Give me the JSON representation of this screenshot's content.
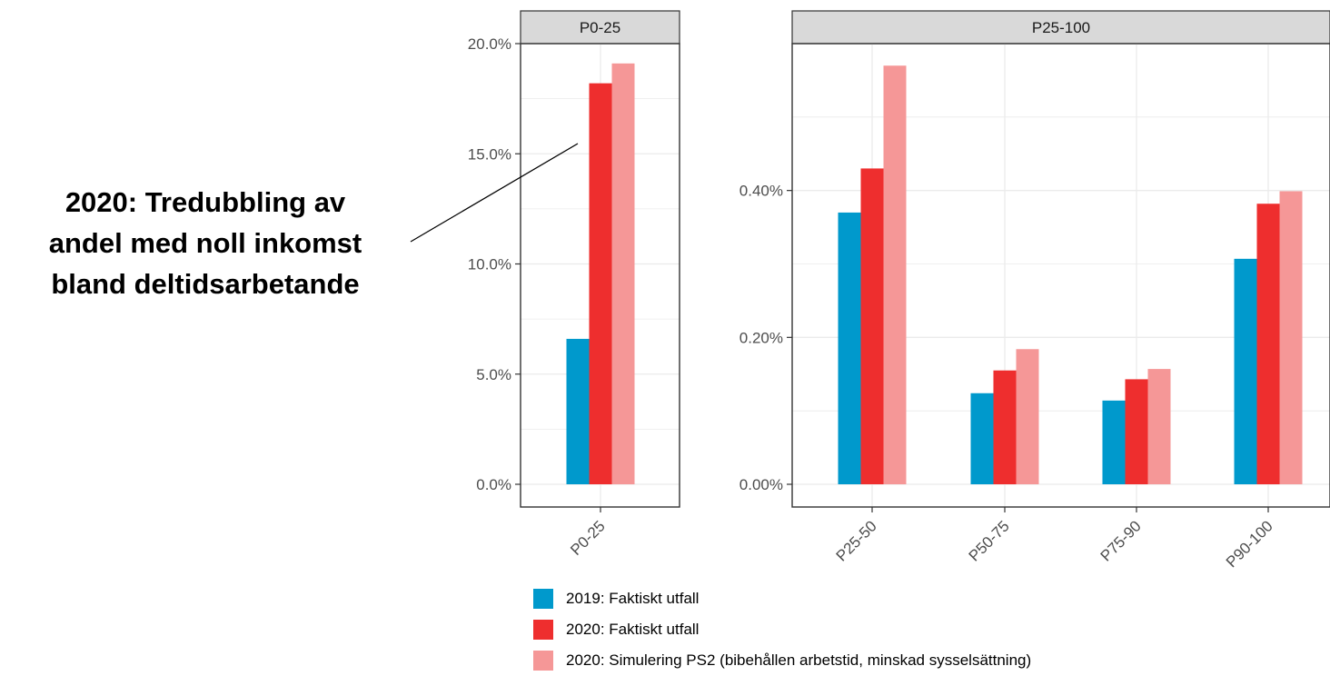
{
  "annotation": {
    "lines": [
      "2020: Tredubbling av",
      "andel med noll inkomst",
      "bland deltidsarbetande"
    ]
  },
  "colors": {
    "series": [
      "#0099cc",
      "#ee2e2e",
      "#f59797"
    ],
    "strip_fill": "#d9d9d9",
    "grid": "#ebebeb"
  },
  "legend": {
    "items": [
      "2019: Faktiskt utfall",
      "2020: Faktiskt utfall",
      "2020: Simulering PS2 (bibehållen arbetstid, minskad sysselsättning)"
    ]
  },
  "chart_data": [
    {
      "type": "bar",
      "panel": "P0-25",
      "categories": [
        "P0-25"
      ],
      "series": [
        {
          "name": "2019: Faktiskt utfall",
          "values": [
            0.066
          ]
        },
        {
          "name": "2020: Faktiskt utfall",
          "values": [
            0.182
          ]
        },
        {
          "name": "2020: Simulering PS2 (bibehållen arbetstid, minskad sysselsättning)",
          "values": [
            0.191
          ]
        }
      ],
      "ylim": [
        0,
        0.2
      ],
      "yticks": [
        0,
        0.05,
        0.1,
        0.15,
        0.2
      ],
      "yticklabels": [
        "0.0%",
        "5.0%",
        "10.0%",
        "15.0%",
        "20.0%"
      ],
      "grid": true
    },
    {
      "type": "bar",
      "panel": "P25-100",
      "categories": [
        "P25-50",
        "P50-75",
        "P75-90",
        "P90-100"
      ],
      "series": [
        {
          "name": "2019: Faktiskt utfall",
          "values": [
            0.0037,
            0.00124,
            0.00114,
            0.00307
          ]
        },
        {
          "name": "2020: Faktiskt utfall",
          "values": [
            0.0043,
            0.00155,
            0.00143,
            0.00382
          ]
        },
        {
          "name": "2020: Simulering PS2 (bibehållen arbetstid, minskad sysselsättning)",
          "values": [
            0.0057,
            0.00184,
            0.00157,
            0.00399
          ]
        }
      ],
      "ylim": [
        0,
        0.006
      ],
      "yticks": [
        0,
        0.002,
        0.004
      ],
      "yticklabels": [
        "0.00%",
        "0.20%",
        "0.40%"
      ],
      "grid": true
    }
  ]
}
